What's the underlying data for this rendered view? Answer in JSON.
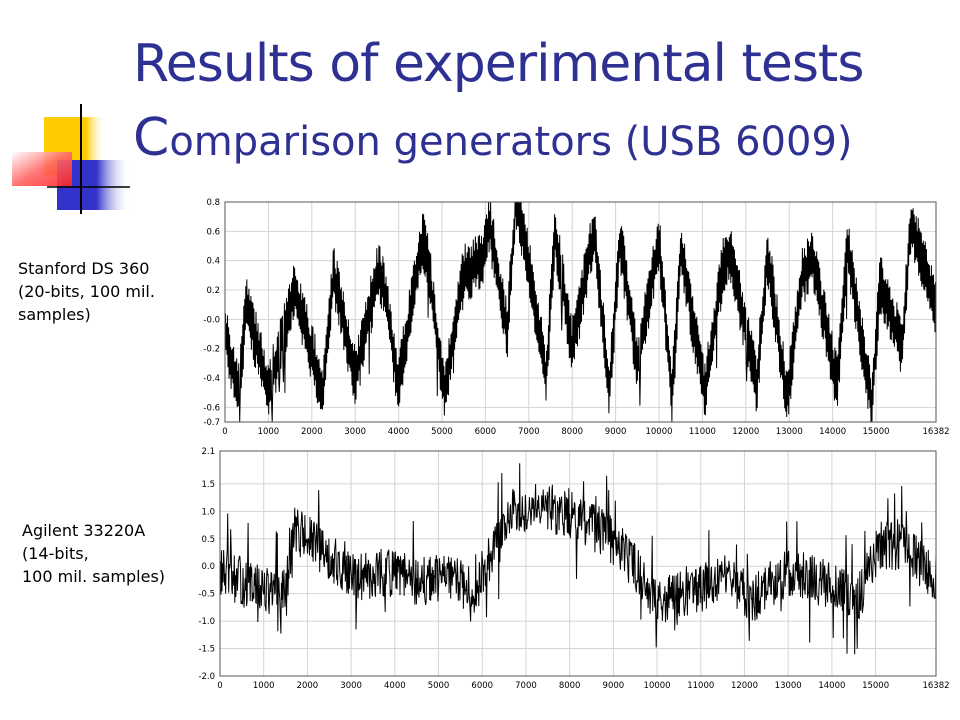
{
  "slide": {
    "title_line1": "Results of experimental tests",
    "title_line2_cap": "C",
    "title_line2_rest": "omparison generators (USB 6009)"
  },
  "labels": {
    "chart1_label": [
      "Stanford DS 360",
      "(20-bits, 100 mil.",
      "samples)"
    ],
    "chart2_label": [
      "Agilent 33220A",
      "(14-bits,",
      "100 mil. samples)"
    ]
  },
  "colors": {
    "title": "#2e3192",
    "deco_yellow": "#ffcc00",
    "deco_blue": "#3333cc",
    "deco_red": "#ff3333",
    "trace": "#000000",
    "grid": "#d4d4d4"
  },
  "chart_data": [
    {
      "type": "line",
      "title": "",
      "xlabel": "",
      "ylabel": "",
      "xlim": [
        0,
        16382
      ],
      "ylim": [
        -0.7,
        0.8
      ],
      "grid": true,
      "xticks": [
        0,
        1000,
        2000,
        3000,
        4000,
        5000,
        6000,
        7000,
        8000,
        9000,
        10000,
        11000,
        12000,
        13000,
        14000,
        15000,
        16382
      ],
      "yticks": [
        0.8,
        0.6,
        0.4,
        0.2,
        -0.0,
        -0.2,
        -0.4,
        -0.6,
        -0.7
      ],
      "ytick_labels": [
        "0.8",
        "0.6",
        "0.4",
        "0.2",
        "-0.0",
        "-0.2",
        "-0.4",
        "-0.6",
        "-0.7"
      ],
      "series": [
        {
          "style": "sawtooth",
          "x": [
            0,
            300,
            500,
            1000,
            1600,
            1700,
            2250,
            2500,
            2600,
            3000,
            3550,
            3700,
            4000,
            4550,
            4650,
            5050,
            5500,
            5900,
            6100,
            6500,
            6700,
            6900,
            7400,
            7600,
            8000,
            8500,
            8850,
            9100,
            9500,
            10000,
            10300,
            10500,
            11050,
            11500,
            11650,
            12250,
            12500,
            12950,
            13300,
            13550,
            14100,
            14350,
            14900,
            15100,
            15600,
            15800,
            16382
          ],
          "y": [
            -0.1,
            -0.5,
            0.1,
            -0.5,
            0.2,
            0.1,
            -0.5,
            0.3,
            0.2,
            -0.4,
            0.35,
            0.15,
            -0.45,
            0.55,
            0.45,
            -0.5,
            0.3,
            0.4,
            0.65,
            -0.1,
            0.8,
            0.55,
            -0.4,
            0.6,
            -0.2,
            0.6,
            -0.5,
            0.55,
            -0.3,
            0.55,
            -0.55,
            0.5,
            -0.5,
            0.4,
            0.45,
            -0.45,
            0.45,
            -0.55,
            0.3,
            0.4,
            -0.45,
            0.5,
            -0.6,
            0.25,
            -0.2,
            0.65,
            0.1
          ]
        }
      ]
    },
    {
      "type": "line",
      "title": "",
      "xlabel": "",
      "ylabel": "",
      "xlim": [
        0,
        16382
      ],
      "ylim": [
        -2.0,
        2.1
      ],
      "grid": true,
      "xticks": [
        0,
        1000,
        2000,
        3000,
        4000,
        5000,
        6000,
        7000,
        8000,
        9000,
        10000,
        11000,
        12000,
        13000,
        14000,
        15000,
        16382
      ],
      "yticks": [
        2.1,
        1.5,
        1.0,
        0.5,
        0.0,
        -0.5,
        -1.0,
        -1.5,
        -2.0
      ],
      "ytick_labels": [
        "2.1",
        "1.5",
        "1.0",
        "0.5",
        "0.0",
        "-0.5",
        "-1.0",
        "-1.5",
        "-2.0"
      ],
      "series": [
        {
          "style": "noise",
          "x": [
            0,
            800,
            1500,
            1700,
            2300,
            3000,
            3800,
            4500,
            5300,
            5800,
            6200,
            6700,
            7300,
            7700,
            8200,
            8800,
            9300,
            10000,
            10800,
            11500,
            12200,
            13000,
            13800,
            14600,
            15100,
            15700,
            16382
          ],
          "y": [
            -0.1,
            -0.4,
            -0.5,
            0.7,
            0.3,
            -0.2,
            -0.1,
            -0.3,
            -0.2,
            -0.5,
            0.2,
            1.0,
            1.2,
            1.0,
            0.9,
            0.6,
            0.2,
            -0.6,
            -0.5,
            -0.2,
            -0.6,
            -0.1,
            -0.3,
            -0.6,
            0.4,
            0.3,
            -0.2
          ]
        }
      ]
    }
  ]
}
